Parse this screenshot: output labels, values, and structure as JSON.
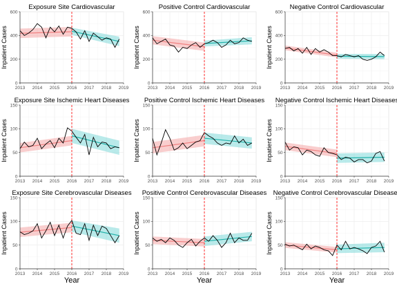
{
  "colors": {
    "pre_band": "#f4a6a6",
    "pre_line": "#f08080",
    "post_band": "#7fd9d8",
    "post_line": "#20b2aa",
    "observed": "#000000",
    "intervention": "#ff2a2a",
    "grid": "#ebebeb",
    "axis": "#333333"
  },
  "layout_labels": {
    "x_axis_title": "Year"
  },
  "chart_data": [
    {
      "id": "p1",
      "type": "line",
      "title": "Exposure Site Cardiovascular",
      "ylabel": "Inpatient Cases",
      "xlabel": "",
      "xlim": [
        2013,
        2019
      ],
      "ylim": [
        0,
        600
      ],
      "xticks": [
        2013,
        2014,
        2015,
        2016,
        2017,
        2018,
        2019
      ],
      "yticks": [
        0,
        200,
        400,
        600
      ],
      "intervention_x": 2016,
      "observed": {
        "x": [
          2013.0,
          2013.25,
          2013.5,
          2013.75,
          2014.0,
          2014.25,
          2014.5,
          2014.75,
          2015.0,
          2015.25,
          2015.5,
          2015.75,
          2016.0,
          2016.25,
          2016.5,
          2016.75,
          2017.0,
          2017.25,
          2017.5,
          2017.75,
          2018.0,
          2018.25,
          2018.5,
          2018.75
        ],
        "y": [
          440,
          400,
          420,
          450,
          500,
          470,
          380,
          470,
          430,
          480,
          410,
          470,
          460,
          430,
          370,
          440,
          350,
          420,
          390,
          360,
          380,
          370,
          300,
          370
        ]
      },
      "pre_fit": {
        "x": [
          2013,
          2016
        ],
        "y": [
          418,
          432
        ],
        "lower": [
          378,
          392
        ],
        "upper": [
          458,
          472
        ]
      },
      "post_fit": {
        "x": [
          2016,
          2018.75
        ],
        "y": [
          435,
          350
        ],
        "lower": [
          405,
          310
        ],
        "upper": [
          465,
          390
        ]
      }
    },
    {
      "id": "p2",
      "type": "line",
      "title": "Positive Control Cardiovascular",
      "ylabel": "Inpatient Cases",
      "xlabel": "",
      "xlim": [
        2013,
        2019
      ],
      "ylim": [
        0,
        600
      ],
      "xticks": [
        2013,
        2014,
        2015,
        2016,
        2017,
        2018,
        2019
      ],
      "yticks": [
        0,
        200,
        400,
        600
      ],
      "intervention_x": 2016,
      "observed": {
        "x": [
          2013.0,
          2013.25,
          2013.5,
          2013.75,
          2014.0,
          2014.25,
          2014.5,
          2014.75,
          2015.0,
          2015.25,
          2015.5,
          2015.75,
          2016.0,
          2016.25,
          2016.5,
          2016.75,
          2017.0,
          2017.25,
          2017.5,
          2017.75,
          2018.0,
          2018.25,
          2018.5,
          2018.75
        ],
        "y": [
          380,
          330,
          350,
          370,
          320,
          310,
          260,
          300,
          290,
          320,
          340,
          300,
          330,
          340,
          360,
          340,
          300,
          320,
          360,
          330,
          340,
          380,
          360,
          350
        ]
      },
      "pre_fit": {
        "x": [
          2013,
          2016
        ],
        "y": [
          360,
          305
        ],
        "lower": [
          325,
          270
        ],
        "upper": [
          395,
          340
        ]
      },
      "post_fit": {
        "x": [
          2016,
          2018.75
        ],
        "y": [
          332,
          355
        ],
        "lower": [
          307,
          325
        ],
        "upper": [
          357,
          385
        ]
      }
    },
    {
      "id": "p3",
      "type": "line",
      "title": "Negative Control Cardiovascular",
      "ylabel": "Inpatient Cases",
      "xlabel": "",
      "xlim": [
        2013,
        2019
      ],
      "ylim": [
        0,
        600
      ],
      "xticks": [
        2013,
        2014,
        2015,
        2016,
        2017,
        2018,
        2019
      ],
      "yticks": [
        0,
        200,
        400,
        600
      ],
      "intervention_x": 2016,
      "observed": {
        "x": [
          2013.0,
          2013.25,
          2013.5,
          2013.75,
          2014.0,
          2014.25,
          2014.5,
          2014.75,
          2015.0,
          2015.25,
          2015.5,
          2015.75,
          2016.0,
          2016.25,
          2016.5,
          2016.75,
          2017.0,
          2017.25,
          2017.5,
          2017.75,
          2018.0,
          2018.25,
          2018.5,
          2018.75
        ],
        "y": [
          290,
          300,
          270,
          290,
          250,
          300,
          240,
          290,
          260,
          280,
          260,
          230,
          230,
          220,
          240,
          230,
          220,
          230,
          200,
          190,
          200,
          220,
          260,
          230
        ]
      },
      "pre_fit": {
        "x": [
          2013,
          2016
        ],
        "y": [
          295,
          235
        ],
        "lower": [
          275,
          215
        ],
        "upper": [
          315,
          255
        ]
      },
      "post_fit": {
        "x": [
          2016,
          2018.75
        ],
        "y": [
          225,
          222
        ],
        "lower": [
          205,
          200
        ],
        "upper": [
          245,
          244
        ]
      }
    },
    {
      "id": "p4",
      "type": "line",
      "title": "Exposure Site Ischemic Heart Diseases",
      "ylabel": "Inpatient Cases",
      "xlabel": "",
      "xlim": [
        2013,
        2019
      ],
      "ylim": [
        0,
        150
      ],
      "xticks": [
        2013,
        2014,
        2015,
        2016,
        2017,
        2018,
        2019
      ],
      "yticks": [
        0,
        50,
        100,
        150
      ],
      "intervention_x": 2016,
      "observed": {
        "x": [
          2013.0,
          2013.25,
          2013.5,
          2013.75,
          2014.0,
          2014.25,
          2014.5,
          2014.75,
          2015.0,
          2015.25,
          2015.5,
          2015.75,
          2016.0,
          2016.25,
          2016.5,
          2016.75,
          2017.0,
          2017.25,
          2017.5,
          2017.75,
          2018.0,
          2018.25,
          2018.5,
          2018.75
        ],
        "y": [
          58,
          72,
          62,
          65,
          80,
          58,
          68,
          75,
          60,
          80,
          70,
          102,
          95,
          82,
          70,
          88,
          45,
          82,
          62,
          72,
          70,
          58,
          62,
          60
        ]
      },
      "pre_fit": {
        "x": [
          2013,
          2016
        ],
        "y": [
          60,
          75
        ],
        "lower": [
          50,
          65
        ],
        "upper": [
          70,
          85
        ]
      },
      "post_fit": {
        "x": [
          2016,
          2018.75
        ],
        "y": [
          85,
          60
        ],
        "lower": [
          70,
          45
        ],
        "upper": [
          100,
          75
        ]
      }
    },
    {
      "id": "p5",
      "type": "line",
      "title": "Positive Control Ischemic Heart Diseases",
      "ylabel": "Inpatient Cases",
      "xlabel": "",
      "xlim": [
        2013,
        2019
      ],
      "ylim": [
        0,
        150
      ],
      "xticks": [
        2013,
        2014,
        2015,
        2016,
        2017,
        2018,
        2019
      ],
      "yticks": [
        0,
        50,
        100,
        150
      ],
      "intervention_x": 2016,
      "observed": {
        "x": [
          2013.0,
          2013.25,
          2013.5,
          2013.75,
          2014.0,
          2014.25,
          2014.5,
          2014.75,
          2015.0,
          2015.25,
          2015.5,
          2015.75,
          2016.0,
          2016.25,
          2016.5,
          2016.75,
          2017.0,
          2017.25,
          2017.5,
          2017.75,
          2018.0,
          2018.25,
          2018.5,
          2018.75
        ],
        "y": [
          80,
          45,
          70,
          98,
          80,
          55,
          60,
          70,
          58,
          65,
          72,
          75,
          92,
          85,
          80,
          70,
          65,
          70,
          68,
          85,
          70,
          78,
          65,
          70
        ]
      },
      "pre_fit": {
        "x": [
          2013,
          2016
        ],
        "y": [
          60,
          75
        ],
        "lower": [
          48,
          63
        ],
        "upper": [
          72,
          87
        ]
      },
      "post_fit": {
        "x": [
          2016,
          2018.75
        ],
        "y": [
          80,
          70
        ],
        "lower": [
          68,
          58
        ],
        "upper": [
          92,
          82
        ]
      }
    },
    {
      "id": "p6",
      "type": "line",
      "title": "Negative Control Ischemic Heart Diseases",
      "ylabel": "Inpatient Cases",
      "xlabel": "",
      "xlim": [
        2013,
        2019
      ],
      "ylim": [
        0,
        150
      ],
      "xticks": [
        2013,
        2014,
        2015,
        2016,
        2017,
        2018,
        2019
      ],
      "yticks": [
        0,
        50,
        100,
        150
      ],
      "intervention_x": 2016,
      "observed": {
        "x": [
          2013.0,
          2013.25,
          2013.5,
          2013.75,
          2014.0,
          2014.25,
          2014.5,
          2014.75,
          2015.0,
          2015.25,
          2015.5,
          2015.75,
          2016.0,
          2016.25,
          2016.5,
          2016.75,
          2017.0,
          2017.25,
          2017.5,
          2017.75,
          2018.0,
          2018.25,
          2018.5,
          2018.75
        ],
        "y": [
          72,
          55,
          62,
          60,
          45,
          55,
          52,
          45,
          42,
          60,
          50,
          48,
          45,
          35,
          40,
          38,
          30,
          35,
          35,
          28,
          32,
          48,
          52,
          32
        ]
      },
      "pre_fit": {
        "x": [
          2013,
          2016
        ],
        "y": [
          63,
          48
        ],
        "lower": [
          55,
          40
        ],
        "upper": [
          71,
          56
        ]
      },
      "post_fit": {
        "x": [
          2016,
          2018.75
        ],
        "y": [
          38,
          40
        ],
        "lower": [
          28,
          30
        ],
        "upper": [
          48,
          50
        ]
      }
    },
    {
      "id": "p7",
      "type": "line",
      "title": "Exposure Site Cerebrovascular Diseases",
      "ylabel": "Inpatient Cases",
      "xlabel": "Year",
      "xlim": [
        2013,
        2019
      ],
      "ylim": [
        0,
        150
      ],
      "xticks": [
        2013,
        2014,
        2015,
        2016,
        2017,
        2018,
        2019
      ],
      "yticks": [
        0,
        50,
        100,
        150
      ],
      "intervention_x": 2016,
      "observed": {
        "x": [
          2013.0,
          2013.25,
          2013.5,
          2013.75,
          2014.0,
          2014.25,
          2014.5,
          2014.75,
          2015.0,
          2015.25,
          2015.5,
          2015.75,
          2016.0,
          2016.25,
          2016.5,
          2016.75,
          2017.0,
          2017.25,
          2017.5,
          2017.75,
          2018.0,
          2018.25,
          2018.5,
          2018.75
        ],
        "y": [
          78,
          72,
          75,
          80,
          95,
          65,
          80,
          98,
          70,
          92,
          65,
          90,
          102,
          75,
          72,
          95,
          60,
          92,
          70,
          90,
          85,
          70,
          55,
          70
        ]
      },
      "pre_fit": {
        "x": [
          2013,
          2016
        ],
        "y": [
          77,
          87
        ],
        "lower": [
          67,
          77
        ],
        "upper": [
          87,
          97
        ]
      },
      "post_fit": {
        "x": [
          2016,
          2018.75
        ],
        "y": [
          90,
          70
        ],
        "lower": [
          78,
          55
        ],
        "upper": [
          102,
          85
        ]
      }
    },
    {
      "id": "p8",
      "type": "line",
      "title": "Positive Control Cerebrovascular Diseases",
      "ylabel": "Inpatient Cases",
      "xlabel": "Year",
      "xlim": [
        2013,
        2019
      ],
      "ylim": [
        0,
        150
      ],
      "xticks": [
        2013,
        2014,
        2015,
        2016,
        2017,
        2018,
        2019
      ],
      "yticks": [
        0,
        50,
        100,
        150
      ],
      "intervention_x": 2016,
      "observed": {
        "x": [
          2013.0,
          2013.25,
          2013.5,
          2013.75,
          2014.0,
          2014.25,
          2014.5,
          2014.75,
          2015.0,
          2015.25,
          2015.5,
          2015.75,
          2016.0,
          2016.25,
          2016.5,
          2016.75,
          2017.0,
          2017.25,
          2017.5,
          2017.75,
          2018.0,
          2018.25,
          2018.5,
          2018.75
        ],
        "y": [
          65,
          58,
          62,
          55,
          65,
          60,
          50,
          45,
          55,
          62,
          48,
          58,
          65,
          58,
          70,
          60,
          45,
          55,
          75,
          55,
          65,
          60,
          60,
          75
        ]
      },
      "pre_fit": {
        "x": [
          2013,
          2016
        ],
        "y": [
          60,
          55
        ],
        "lower": [
          52,
          47
        ],
        "upper": [
          68,
          63
        ]
      },
      "post_fit": {
        "x": [
          2016,
          2018.75
        ],
        "y": [
          58,
          68
        ],
        "lower": [
          48,
          58
        ],
        "upper": [
          68,
          78
        ]
      }
    },
    {
      "id": "p9",
      "type": "line",
      "title": "Negative Control Cerebrovascular Diseases",
      "ylabel": "Inpatient Cases",
      "xlabel": "Year",
      "xlim": [
        2013,
        2019
      ],
      "ylim": [
        0,
        150
      ],
      "xticks": [
        2013,
        2014,
        2015,
        2016,
        2017,
        2018,
        2019
      ],
      "yticks": [
        0,
        50,
        100,
        150
      ],
      "intervention_x": 2016,
      "observed": {
        "x": [
          2013.0,
          2013.25,
          2013.5,
          2013.75,
          2014.0,
          2014.25,
          2014.5,
          2014.75,
          2015.0,
          2015.25,
          2015.5,
          2015.75,
          2016.0,
          2016.25,
          2016.5,
          2016.75,
          2017.0,
          2017.25,
          2017.5,
          2017.75,
          2018.0,
          2018.25,
          2018.5,
          2018.75
        ],
        "y": [
          52,
          48,
          50,
          45,
          40,
          52,
          42,
          48,
          45,
          40,
          38,
          28,
          50,
          40,
          58,
          42,
          45,
          42,
          38,
          32,
          45,
          48,
          58,
          35
        ]
      },
      "pre_fit": {
        "x": [
          2013,
          2016
        ],
        "y": [
          50,
          40
        ],
        "lower": [
          44,
          34
        ],
        "upper": [
          56,
          46
        ]
      },
      "post_fit": {
        "x": [
          2016,
          2018.75
        ],
        "y": [
          42,
          45
        ],
        "lower": [
          33,
          35
        ],
        "upper": [
          51,
          55
        ]
      }
    }
  ]
}
